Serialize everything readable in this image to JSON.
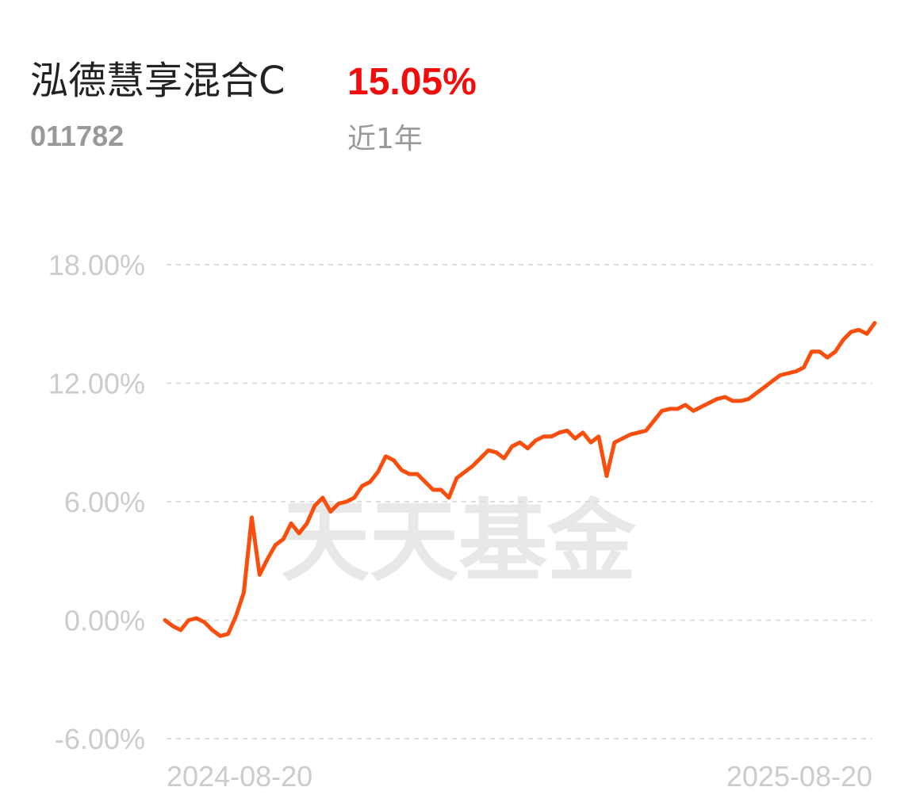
{
  "chart_data": {
    "type": "line",
    "title": "泓德慧享混合C",
    "fund_code": "011782",
    "return_value": "15.05%",
    "period": "近1年",
    "watermark": "天天基金",
    "grid": true,
    "ylim": [
      -6,
      18
    ],
    "yticks": [
      {
        "value": 18,
        "label": "18.00%"
      },
      {
        "value": 12,
        "label": "12.00%"
      },
      {
        "value": 6,
        "label": "6.00%"
      },
      {
        "value": 0,
        "label": "0.00%"
      },
      {
        "value": -6,
        "label": "-6.00%"
      }
    ],
    "categories": [
      "2024-08-20",
      null,
      null,
      null,
      null,
      null,
      null,
      null,
      null,
      null,
      null,
      null,
      null,
      null,
      null,
      null,
      null,
      null,
      null,
      null,
      null,
      null,
      null,
      null,
      null,
      null,
      null,
      null,
      null,
      null,
      null,
      null,
      null,
      null,
      null,
      null,
      null,
      null,
      null,
      null,
      null,
      null,
      null,
      null,
      null,
      null,
      null,
      null,
      null,
      null,
      null,
      null,
      null,
      null,
      null,
      null,
      null,
      null,
      null,
      null,
      null,
      null,
      null,
      null,
      null,
      null,
      null,
      null,
      null,
      null,
      null,
      null,
      null,
      null,
      null,
      null,
      null,
      null,
      null,
      null,
      null,
      null,
      null,
      null,
      null,
      null,
      null,
      null,
      null,
      null,
      "2025-08-20"
    ],
    "series": [
      {
        "name": "泓德慧享混合C",
        "color": "#f94f0e",
        "values": [
          0.0,
          -0.3,
          -0.5,
          0.0,
          0.1,
          -0.1,
          -0.5,
          -0.8,
          -0.7,
          0.2,
          1.4,
          5.2,
          2.3,
          3.1,
          3.8,
          4.1,
          4.9,
          4.4,
          4.9,
          5.8,
          6.2,
          5.5,
          5.9,
          6.0,
          6.2,
          6.8,
          7.0,
          7.5,
          8.3,
          8.1,
          7.6,
          7.4,
          7.4,
          7.0,
          6.6,
          6.6,
          6.2,
          7.2,
          7.5,
          7.8,
          8.2,
          8.6,
          8.5,
          8.2,
          8.8,
          9.0,
          8.7,
          9.1,
          9.3,
          9.3,
          9.5,
          9.6,
          9.2,
          9.5,
          9.0,
          9.3,
          7.3,
          9.0,
          9.2,
          9.4,
          9.5,
          9.6,
          10.1,
          10.6,
          10.7,
          10.7,
          10.9,
          10.6,
          10.8,
          11.0,
          11.2,
          11.3,
          11.1,
          11.1,
          11.2,
          11.5,
          11.8,
          12.1,
          12.4,
          12.5,
          12.6,
          12.8,
          13.6,
          13.6,
          13.3,
          13.6,
          14.2,
          14.6,
          14.7,
          14.5,
          15.05
        ]
      }
    ]
  }
}
